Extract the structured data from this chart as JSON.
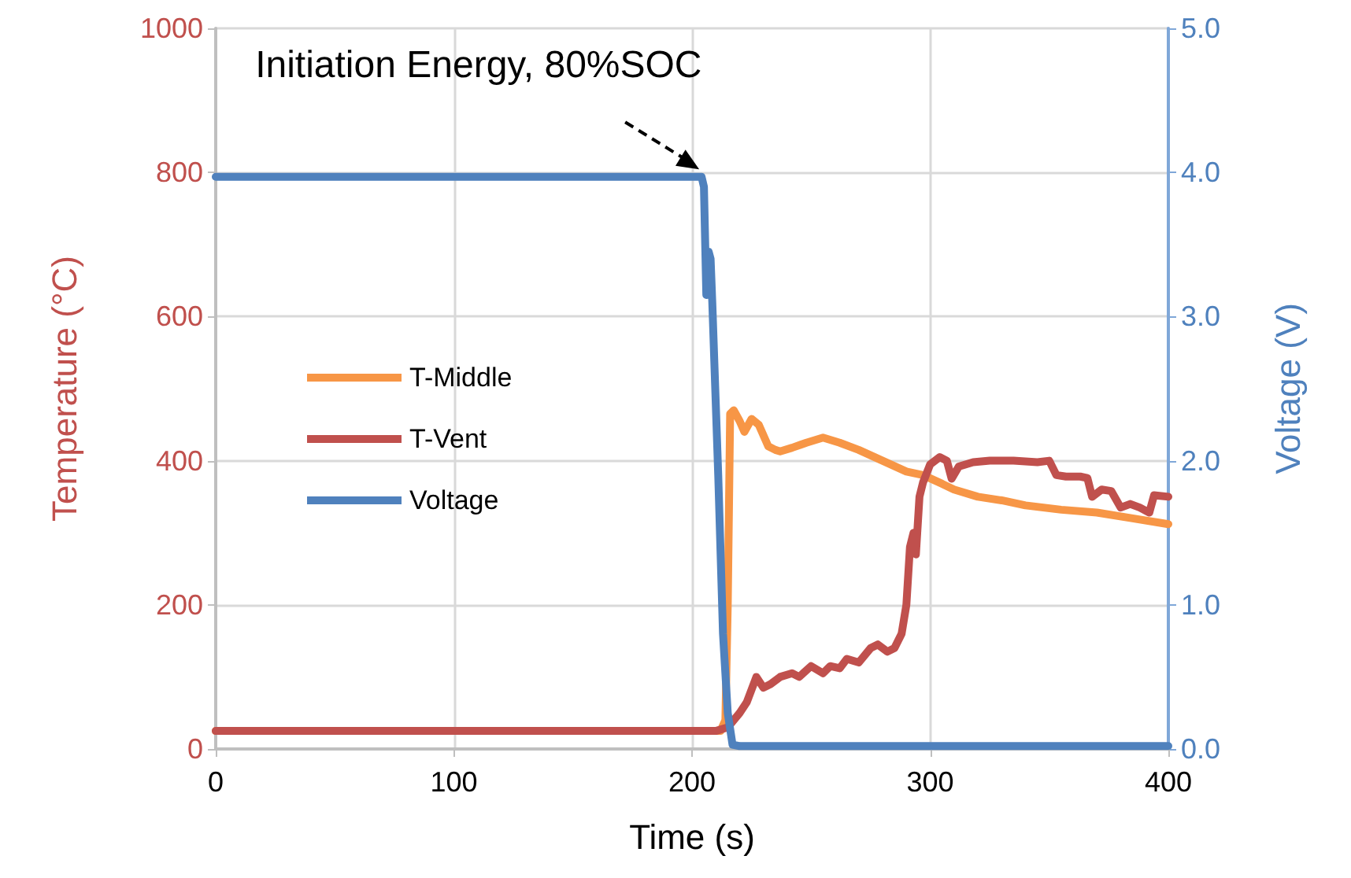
{
  "chart_data": {
    "type": "line",
    "xlabel": "Time (s)",
    "ylabel": "Temperature (°C)",
    "y2label": "Voltage (V)",
    "xlim": [
      0,
      400
    ],
    "xticks": [
      0,
      100,
      200,
      300,
      400
    ],
    "ylim": [
      0,
      1000
    ],
    "yticks": [
      0,
      200,
      400,
      600,
      800,
      1000
    ],
    "y2lim": [
      0,
      5
    ],
    "y2ticks": [
      {
        "value": 0,
        "label": "0.0"
      },
      {
        "value": 1,
        "label": "1.0"
      },
      {
        "value": 2,
        "label": "2.0"
      },
      {
        "value": 3,
        "label": "3.0"
      },
      {
        "value": 4,
        "label": "4.0"
      },
      {
        "value": 5,
        "label": "5.0"
      }
    ],
    "grid": true,
    "legend": "left",
    "marker": "none",
    "line_style": "solid",
    "annotations": [
      {
        "text": "Initiation Energy, 80%SOC",
        "x": 205,
        "y": 800
      }
    ],
    "series": [
      {
        "name": "T-Middle",
        "color": "#f79646",
        "x": [
          0,
          100,
          200,
          212,
          214,
          215,
          216,
          217.5,
          220,
          222,
          225,
          228,
          232,
          235,
          237,
          242,
          248,
          255,
          262,
          270,
          280,
          290,
          297,
          305,
          310,
          320,
          330,
          340,
          355,
          370,
          385,
          400
        ],
        "values": [
          25,
          25,
          25,
          25,
          40,
          200,
          465,
          470,
          455,
          440,
          458,
          450,
          420,
          415,
          413,
          418,
          425,
          432,
          425,
          415,
          400,
          385,
          380,
          368,
          360,
          350,
          345,
          338,
          332,
          328,
          320,
          312
        ]
      },
      {
        "name": "T-Vent",
        "color": "#c0504d",
        "x": [
          0,
          100,
          205,
          210,
          215,
          220,
          223,
          227,
          230,
          233,
          237,
          242,
          245,
          250,
          255,
          258,
          262,
          265,
          270,
          275,
          278,
          282,
          285,
          288,
          290,
          291.5,
          293,
          294,
          295.5,
          297,
          300,
          304,
          307,
          309,
          312,
          318,
          325,
          335,
          345,
          350,
          353,
          357,
          363,
          366,
          368,
          372,
          376,
          380,
          384,
          388,
          392,
          394,
          400
        ],
        "values": [
          25,
          25,
          25,
          25,
          30,
          50,
          65,
          100,
          85,
          90,
          100,
          105,
          100,
          115,
          105,
          115,
          112,
          125,
          120,
          140,
          145,
          135,
          140,
          160,
          200,
          280,
          300,
          270,
          350,
          370,
          395,
          405,
          400,
          375,
          392,
          398,
          400,
          400,
          398,
          400,
          380,
          378,
          378,
          376,
          350,
          360,
          358,
          335,
          340,
          335,
          328,
          352,
          350
        ]
      },
      {
        "name": "Voltage",
        "color": "#4f81bd",
        "axis": "y2",
        "x": [
          0,
          100,
          204,
          205,
          206,
          207,
          207.8,
          208.5,
          211,
          213,
          215,
          217,
          220,
          300,
          400
        ],
        "values": [
          3.97,
          3.97,
          3.97,
          3.9,
          3.15,
          3.45,
          3.4,
          3.1,
          1.9,
          0.8,
          0.25,
          0.03,
          0.02,
          0.02,
          0.02
        ]
      }
    ]
  }
}
